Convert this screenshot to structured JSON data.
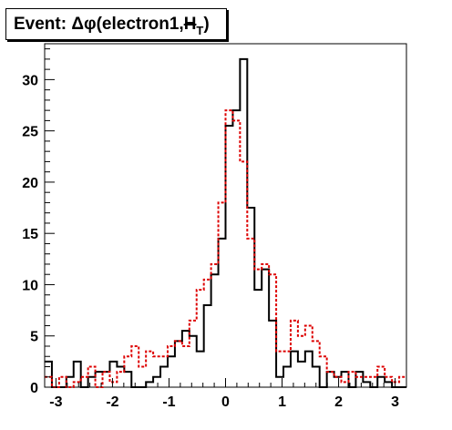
{
  "title": "Event: Δφ(electron1,",
  "title_sym_main": "H",
  "title_sym_sub": "T",
  "title_close": ")",
  "chart_data": {
    "type": "histogram",
    "title": "Event: Δφ(electron1, H_T)",
    "xlim": [
      -3.2,
      3.2
    ],
    "ylim": [
      0,
      33.5
    ],
    "bin_edges_start": -3.2,
    "bin_width": 0.128,
    "x_ticks": [
      -3,
      -2,
      -1,
      0,
      1,
      2,
      3
    ],
    "y_ticks": [
      0,
      5,
      10,
      15,
      20,
      25,
      30
    ],
    "grid": false,
    "series": [
      {
        "style": "solid",
        "color": "#000000",
        "values": [
          2.5,
          0,
          0,
          1,
          2.5,
          0,
          1,
          1.5,
          1.5,
          2.5,
          2,
          1.5,
          0,
          0,
          0.5,
          1,
          2,
          3,
          4.5,
          5.5,
          5,
          3.5,
          8,
          11,
          14.5,
          25.5,
          27,
          32,
          17.5,
          9.5,
          11.5,
          6.5,
          1,
          2,
          3.5,
          2.5,
          3.5,
          2,
          0,
          1.5,
          1,
          1.5,
          0,
          1.5,
          0.5,
          0,
          1,
          0.5,
          0,
          0
        ]
      },
      {
        "style": "dotted",
        "color": "#dd0000",
        "values": [
          1,
          0,
          1,
          0,
          0.5,
          1,
          2,
          0,
          1.5,
          0.5,
          1.5,
          3,
          4,
          2,
          3.5,
          3,
          3,
          4,
          4.5,
          4,
          6.5,
          9.5,
          10.5,
          12,
          18,
          27,
          26,
          22,
          14.5,
          11.5,
          12,
          11,
          3.5,
          3.5,
          6.5,
          5,
          6,
          4.5,
          3,
          1.5,
          1,
          0.5,
          1.5,
          1,
          1,
          1,
          2,
          1,
          0.5,
          1
        ]
      }
    ]
  }
}
